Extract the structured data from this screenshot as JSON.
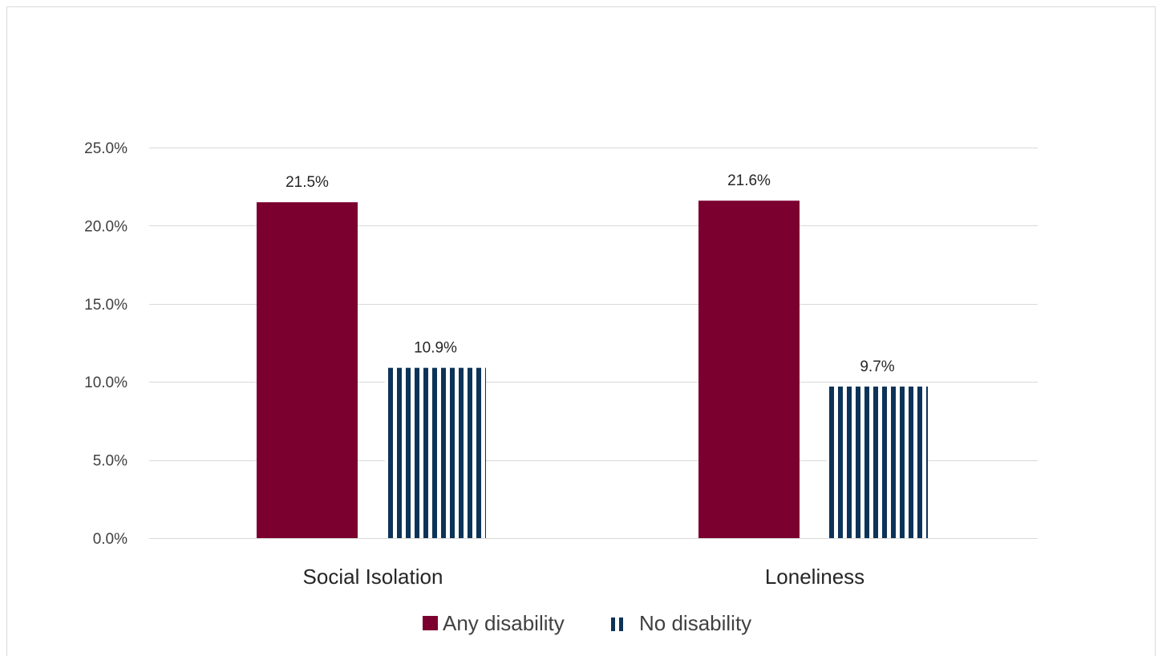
{
  "chart_data": {
    "type": "bar",
    "title": "",
    "xlabel": "",
    "ylabel": "",
    "categories": [
      "Social Isolation",
      "Loneliness"
    ],
    "series": [
      {
        "name": "Any disability",
        "values": [
          21.5,
          21.6
        ],
        "labels": [
          "21.5%",
          "21.6%"
        ],
        "color": "#7b0030",
        "fill": "solid"
      },
      {
        "name": "No disability",
        "values": [
          10.9,
          9.7
        ],
        "labels": [
          "10.9%",
          "9.7%"
        ],
        "color": "#0d3358",
        "fill": "vertical-stripes"
      }
    ],
    "ylim": [
      0,
      25
    ],
    "yticks": [
      0,
      5,
      10,
      15,
      20,
      25
    ],
    "ytick_labels": [
      "0.0%",
      "5.0%",
      "10.0%",
      "15.0%",
      "20.0%",
      "25.0%"
    ],
    "grid": true,
    "legend_position": "bottom"
  }
}
